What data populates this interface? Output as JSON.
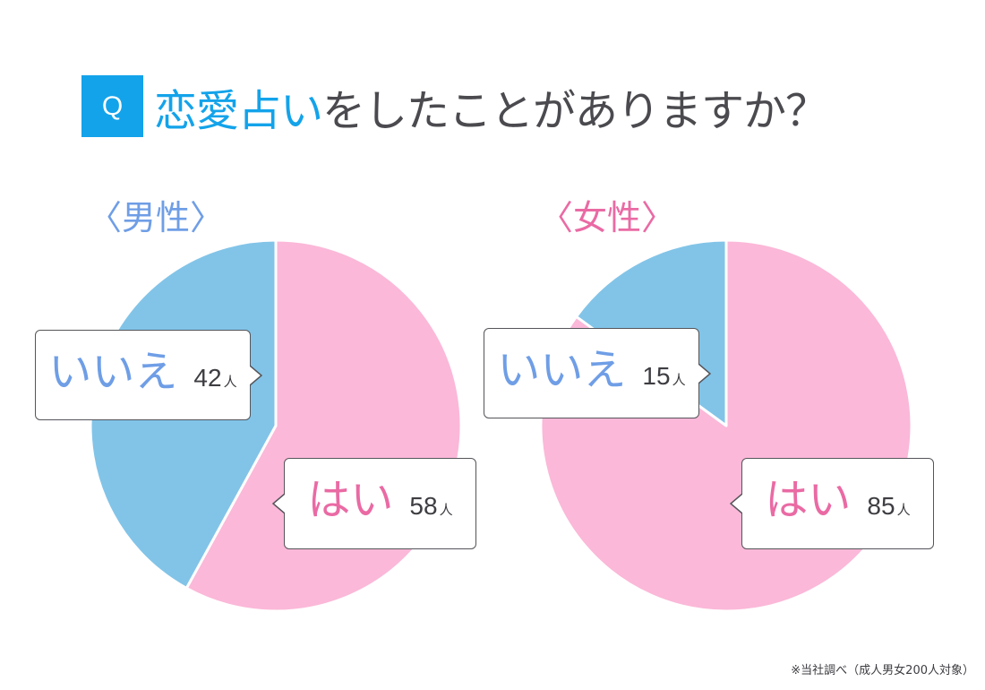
{
  "header": {
    "badge": "Q",
    "question_accent": "恋愛占い",
    "question_rest": "をしたことがありますか？"
  },
  "colors": {
    "accent_blue": "#13a3ea",
    "slice_no": "#82c4e8",
    "slice_yes": "#fbb8d8",
    "label_no": "#6f9ee6",
    "label_yes": "#ea6aa4"
  },
  "charts": [
    {
      "group_label": "〈男性〉",
      "yes": {
        "label": "はい",
        "value": "58",
        "unit": "人"
      },
      "no": {
        "label": "いいえ",
        "value": "42",
        "unit": "人"
      }
    },
    {
      "group_label": "〈女性〉",
      "yes": {
        "label": "はい",
        "value": "85",
        "unit": "人"
      },
      "no": {
        "label": "いいえ",
        "value": "15",
        "unit": "人"
      }
    }
  ],
  "footnote": "※当社調べ（成人男女200人対象）",
  "chart_data": [
    {
      "type": "pie",
      "title": "恋愛占いをしたことがありますか？ 〈男性〉",
      "categories": [
        "はい",
        "いいえ"
      ],
      "values": [
        58,
        42
      ],
      "unit": "人",
      "colors": [
        "#fbb8d8",
        "#82c4e8"
      ]
    },
    {
      "type": "pie",
      "title": "恋愛占いをしたことがありますか？ 〈女性〉",
      "categories": [
        "はい",
        "いいえ"
      ],
      "values": [
        85,
        15
      ],
      "unit": "人",
      "colors": [
        "#fbb8d8",
        "#82c4e8"
      ]
    }
  ]
}
